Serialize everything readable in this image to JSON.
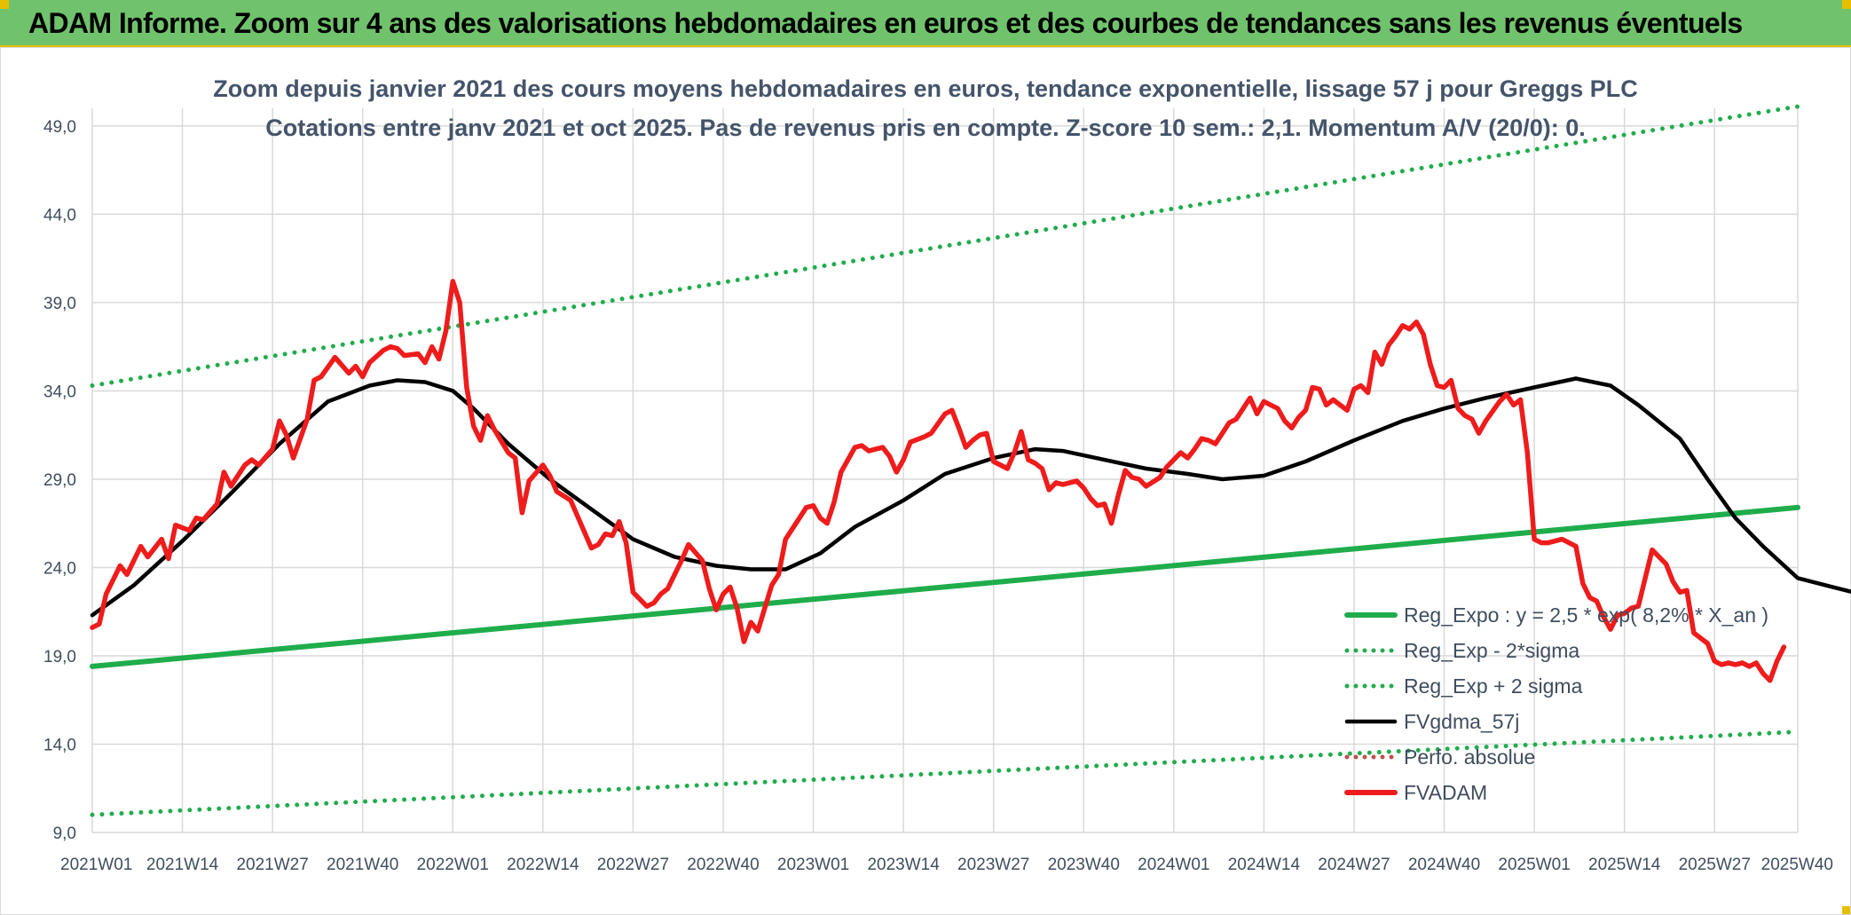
{
  "banner": {
    "title": "ADAM Informe. Zoom sur 4 ans des valorisations hebdomadaires en euros et des courbes de tendances sans les revenus éventuels"
  },
  "colors": {
    "banner_bg": "#70c36c",
    "banner_border": "#e6c000",
    "reg_expo": "#1fad4b",
    "fvgdma": "#000000",
    "fvadam": "#ee1c1c",
    "grid": "#d9d9d9",
    "subtitle": "#44546a"
  },
  "chart_data": {
    "type": "line",
    "title_line1": "Zoom depuis janvier 2021 des cours moyens hebdomadaires en euros, tendance exponentielle, lissage 57 j pour Greggs PLC",
    "title_line2": "Cotations entre janv 2021 et oct 2025. Pas de revenus pris en compte. Z-score 10 sem.: 2,1. Momentum A/V (20/0): 0.",
    "ylim": [
      9,
      50
    ],
    "yticks": [
      9,
      14,
      19,
      24,
      29,
      34,
      39,
      44,
      49
    ],
    "ytick_labels": [
      "9,0",
      "14,0",
      "19,0",
      "24,0",
      "29,0",
      "34,0",
      "39,0",
      "44,0",
      "49,0"
    ],
    "xtick_labels": [
      "2021W01",
      "2021W14",
      "2021W27",
      "2021W40",
      "2022W01",
      "2022W14",
      "2022W27",
      "2022W40",
      "2023W01",
      "2023W14",
      "2023W27",
      "2023W40",
      "2024W01",
      "2024W14",
      "2024W27",
      "2024W40",
      "2025W01",
      "2025W14",
      "2025W27",
      "2025W40"
    ],
    "grid": true,
    "legend_position": "bottom-right",
    "series": [
      {
        "name": "Reg_Expo : y = 2,5 * exp( 8,2% * X_an )",
        "style": "solid",
        "color": "#1fad4b",
        "points": [
          [
            0,
            18.4
          ],
          [
            246,
            27.4
          ]
        ]
      },
      {
        "name": "Reg_Exp - 2*sigma",
        "style": "dotted",
        "color": "#1fad4b",
        "points": [
          [
            0,
            10.0
          ],
          [
            246,
            14.7
          ]
        ]
      },
      {
        "name": "Reg_Exp + 2 sigma",
        "style": "dotted",
        "color": "#1fad4b",
        "points": [
          [
            0,
            34.3
          ],
          [
            246,
            50.1
          ]
        ]
      },
      {
        "name": "FVgdma_57j",
        "style": "solid",
        "color": "#000000",
        "points": [
          [
            0,
            21.3
          ],
          [
            6,
            23.0
          ],
          [
            13,
            25.5
          ],
          [
            20,
            28.2
          ],
          [
            27,
            31.0
          ],
          [
            34,
            33.4
          ],
          [
            40,
            34.3
          ],
          [
            44,
            34.6
          ],
          [
            48,
            34.5
          ],
          [
            52,
            34.0
          ],
          [
            55,
            33.0
          ],
          [
            60,
            31.0
          ],
          [
            66,
            29.0
          ],
          [
            72,
            27.3
          ],
          [
            78,
            25.6
          ],
          [
            84,
            24.6
          ],
          [
            90,
            24.1
          ],
          [
            95,
            23.9
          ],
          [
            100,
            23.9
          ],
          [
            105,
            24.8
          ],
          [
            110,
            26.3
          ],
          [
            117,
            27.8
          ],
          [
            123,
            29.3
          ],
          [
            130,
            30.2
          ],
          [
            136,
            30.7
          ],
          [
            140,
            30.6
          ],
          [
            146,
            30.1
          ],
          [
            152,
            29.6
          ],
          [
            158,
            29.3
          ],
          [
            163,
            29.0
          ],
          [
            169,
            29.2
          ],
          [
            175,
            30.0
          ],
          [
            182,
            31.2
          ],
          [
            189,
            32.3
          ],
          [
            195,
            33.0
          ],
          [
            201,
            33.6
          ],
          [
            208,
            34.2
          ],
          [
            214,
            34.7
          ],
          [
            219,
            34.3
          ],
          [
            223,
            33.2
          ],
          [
            229,
            31.3
          ],
          [
            233,
            29.0
          ],
          [
            237,
            26.8
          ],
          [
            241,
            25.2
          ],
          [
            246,
            23.4
          ],
          [
            251,
            22.9
          ],
          [
            255,
            22.5
          ],
          [
            259,
            21.5
          ],
          [
            263,
            20.3
          ],
          [
            267,
            19.7
          ],
          [
            271,
            19.4
          ],
          [
            274,
            19.4
          ]
        ]
      },
      {
        "name": "Perfo. absolue",
        "style": "dotted",
        "color": "#c0504d",
        "points": []
      },
      {
        "name": "FVADAM",
        "style": "solid",
        "color": "#ee1c1c",
        "points": [
          [
            0,
            20.6
          ],
          [
            1,
            20.8
          ],
          [
            2,
            22.5
          ],
          [
            4,
            24.1
          ],
          [
            5,
            23.6
          ],
          [
            7,
            25.2
          ],
          [
            8,
            24.6
          ],
          [
            10,
            25.6
          ],
          [
            11,
            24.5
          ],
          [
            12,
            26.4
          ],
          [
            14,
            26.1
          ],
          [
            15,
            26.8
          ],
          [
            16,
            26.7
          ],
          [
            18,
            27.6
          ],
          [
            19,
            29.4
          ],
          [
            20,
            28.6
          ],
          [
            22,
            29.8
          ],
          [
            23,
            30.1
          ],
          [
            24,
            29.8
          ],
          [
            26,
            30.7
          ],
          [
            27,
            32.3
          ],
          [
            28,
            31.5
          ],
          [
            29,
            30.2
          ],
          [
            31,
            32.4
          ],
          [
            32,
            34.6
          ],
          [
            33,
            34.8
          ],
          [
            35,
            35.9
          ],
          [
            37,
            35.0
          ],
          [
            38,
            35.4
          ],
          [
            39,
            34.8
          ],
          [
            40,
            35.6
          ],
          [
            42,
            36.3
          ],
          [
            43,
            36.5
          ],
          [
            44,
            36.4
          ],
          [
            45,
            36.0
          ],
          [
            47,
            36.1
          ],
          [
            48,
            35.6
          ],
          [
            49,
            36.5
          ],
          [
            50,
            35.8
          ],
          [
            51,
            37.4
          ],
          [
            52,
            40.2
          ],
          [
            53,
            39.0
          ],
          [
            54,
            34.2
          ],
          [
            55,
            32.0
          ],
          [
            56,
            31.2
          ],
          [
            57,
            32.6
          ],
          [
            58,
            31.8
          ],
          [
            60,
            30.5
          ],
          [
            61,
            30.2
          ],
          [
            62,
            27.1
          ],
          [
            63,
            28.9
          ],
          [
            65,
            29.8
          ],
          [
            66,
            29.2
          ],
          [
            67,
            28.3
          ],
          [
            69,
            27.8
          ],
          [
            71,
            26.0
          ],
          [
            72,
            25.1
          ],
          [
            73,
            25.3
          ],
          [
            74,
            25.9
          ],
          [
            75,
            25.8
          ],
          [
            76,
            26.6
          ],
          [
            77,
            25.4
          ],
          [
            78,
            22.6
          ],
          [
            80,
            21.8
          ],
          [
            81,
            22.0
          ],
          [
            82,
            22.5
          ],
          [
            83,
            22.8
          ],
          [
            85,
            24.4
          ],
          [
            86,
            25.3
          ],
          [
            88,
            24.4
          ],
          [
            89,
            22.8
          ],
          [
            90,
            21.6
          ],
          [
            91,
            22.5
          ],
          [
            92,
            22.9
          ],
          [
            93,
            21.7
          ],
          [
            94,
            19.8
          ],
          [
            95,
            20.9
          ],
          [
            96,
            20.4
          ],
          [
            98,
            23.0
          ],
          [
            99,
            23.6
          ],
          [
            100,
            25.6
          ],
          [
            102,
            26.8
          ],
          [
            103,
            27.4
          ],
          [
            104,
            27.5
          ],
          [
            105,
            26.8
          ],
          [
            106,
            26.5
          ],
          [
            107,
            27.7
          ],
          [
            108,
            29.4
          ],
          [
            110,
            30.8
          ],
          [
            111,
            30.9
          ],
          [
            112,
            30.6
          ],
          [
            113,
            30.7
          ],
          [
            114,
            30.8
          ],
          [
            115,
            30.3
          ],
          [
            116,
            29.4
          ],
          [
            117,
            30.1
          ],
          [
            118,
            31.1
          ],
          [
            120,
            31.4
          ],
          [
            121,
            31.6
          ],
          [
            123,
            32.7
          ],
          [
            124,
            32.9
          ],
          [
            125,
            31.9
          ],
          [
            126,
            30.8
          ],
          [
            127,
            31.2
          ],
          [
            128,
            31.5
          ],
          [
            129,
            31.6
          ],
          [
            130,
            30.0
          ],
          [
            132,
            29.6
          ],
          [
            133,
            30.5
          ],
          [
            134,
            31.7
          ],
          [
            135,
            30.1
          ],
          [
            136,
            29.9
          ],
          [
            137,
            29.6
          ],
          [
            138,
            28.4
          ],
          [
            139,
            28.8
          ],
          [
            140,
            28.7
          ],
          [
            142,
            28.9
          ],
          [
            143,
            28.5
          ],
          [
            144,
            27.9
          ],
          [
            145,
            27.5
          ],
          [
            146,
            27.6
          ],
          [
            147,
            26.5
          ],
          [
            148,
            28.1
          ],
          [
            149,
            29.5
          ],
          [
            150,
            29.1
          ],
          [
            151,
            29.0
          ],
          [
            152,
            28.6
          ],
          [
            154,
            29.1
          ],
          [
            155,
            29.7
          ],
          [
            157,
            30.5
          ],
          [
            158,
            30.2
          ],
          [
            159,
            30.7
          ],
          [
            160,
            31.3
          ],
          [
            161,
            31.2
          ],
          [
            162,
            31.0
          ],
          [
            163,
            31.6
          ],
          [
            164,
            32.2
          ],
          [
            165,
            32.4
          ],
          [
            166,
            33.0
          ],
          [
            167,
            33.6
          ],
          [
            168,
            32.7
          ],
          [
            169,
            33.4
          ],
          [
            170,
            33.2
          ],
          [
            171,
            33.0
          ],
          [
            172,
            32.3
          ],
          [
            173,
            31.9
          ],
          [
            174,
            32.5
          ],
          [
            175,
            32.9
          ],
          [
            176,
            34.2
          ],
          [
            177,
            34.1
          ],
          [
            178,
            33.2
          ],
          [
            179,
            33.5
          ],
          [
            181,
            32.9
          ],
          [
            182,
            34.1
          ],
          [
            183,
            34.3
          ],
          [
            184,
            33.9
          ],
          [
            185,
            36.2
          ],
          [
            186,
            35.5
          ],
          [
            187,
            36.6
          ],
          [
            188,
            37.1
          ],
          [
            189,
            37.7
          ],
          [
            190,
            37.5
          ],
          [
            191,
            37.9
          ],
          [
            192,
            37.2
          ],
          [
            193,
            35.5
          ],
          [
            194,
            34.3
          ],
          [
            195,
            34.2
          ],
          [
            196,
            34.6
          ],
          [
            197,
            33.0
          ],
          [
            198,
            32.6
          ],
          [
            199,
            32.4
          ],
          [
            200,
            31.6
          ],
          [
            201,
            32.3
          ],
          [
            203,
            33.4
          ],
          [
            204,
            33.8
          ],
          [
            205,
            33.2
          ],
          [
            206,
            33.5
          ],
          [
            207,
            30.5
          ],
          [
            208,
            25.6
          ],
          [
            209,
            25.4
          ],
          [
            210,
            25.4
          ],
          [
            212,
            25.6
          ],
          [
            214,
            25.2
          ],
          [
            215,
            23.1
          ],
          [
            216,
            22.3
          ],
          [
            217,
            22.1
          ],
          [
            218,
            21.2
          ],
          [
            219,
            20.5
          ],
          [
            220,
            21.3
          ],
          [
            221,
            21.4
          ],
          [
            222,
            21.7
          ],
          [
            223,
            21.8
          ],
          [
            224,
            23.4
          ],
          [
            225,
            25.0
          ],
          [
            226,
            24.6
          ],
          [
            227,
            24.2
          ],
          [
            228,
            23.2
          ],
          [
            229,
            22.6
          ],
          [
            230,
            22.7
          ],
          [
            231,
            20.3
          ],
          [
            232,
            20.0
          ],
          [
            233,
            19.7
          ],
          [
            234,
            18.7
          ],
          [
            235,
            18.5
          ],
          [
            236,
            18.6
          ],
          [
            237,
            18.5
          ],
          [
            238,
            18.6
          ],
          [
            239,
            18.4
          ],
          [
            240,
            18.6
          ],
          [
            241,
            18.0
          ],
          [
            242,
            17.6
          ],
          [
            243,
            18.7
          ],
          [
            244,
            19.5
          ]
        ]
      }
    ]
  }
}
